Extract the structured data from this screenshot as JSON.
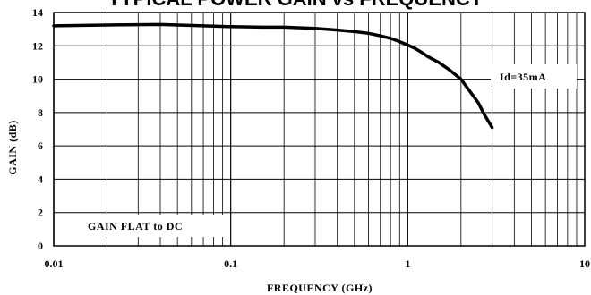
{
  "chart_data": {
    "type": "line",
    "title": "TYPICAL POWER GAIN vs FREQUENCY",
    "xlabel": "FREQUENCY (GHz)",
    "ylabel": "GAIN (dB)",
    "x_scale": "log",
    "xlim": [
      0.01,
      10
    ],
    "ylim": [
      0,
      14
    ],
    "x_ticks": [
      "0.01",
      "0.1",
      "1",
      "10"
    ],
    "y_ticks": [
      "0",
      "2",
      "4",
      "6",
      "8",
      "10",
      "12",
      "14"
    ],
    "grid": true,
    "annotations": [
      "Id=35mA",
      "GAIN FLAT to DC"
    ],
    "series": [
      {
        "x": [
          0.01,
          0.02,
          0.04,
          0.07,
          0.1,
          0.15,
          0.2,
          0.3,
          0.4,
          0.5,
          0.6,
          0.7,
          0.8,
          0.9,
          1.0,
          1.1,
          1.2,
          1.3,
          1.5,
          1.7,
          2.0,
          2.2,
          2.5,
          2.7,
          3.0
        ],
        "y": [
          13.2,
          13.25,
          13.28,
          13.2,
          13.15,
          13.12,
          13.12,
          13.05,
          12.95,
          12.85,
          12.75,
          12.6,
          12.45,
          12.25,
          12.05,
          11.85,
          11.6,
          11.35,
          11.0,
          10.6,
          10.0,
          9.4,
          8.6,
          7.9,
          7.1
        ]
      }
    ]
  }
}
